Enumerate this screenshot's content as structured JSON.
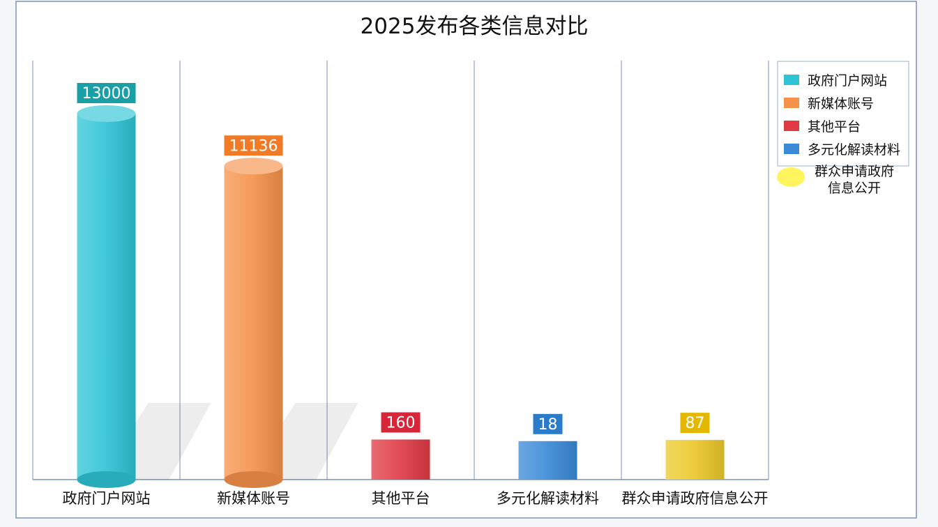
{
  "chart_data": {
    "type": "bar",
    "title": "2025发布各类信息对比",
    "categories": [
      "政府门户网站",
      "新媒体账号",
      "其他平台",
      "多元化解读材料",
      "群众申请政府信息公开"
    ],
    "values": [
      13000,
      11136,
      160,
      18,
      87
    ],
    "value_labels": [
      "13000",
      "11136",
      "160",
      "18",
      "87"
    ],
    "colors": [
      "#2ec4d6",
      "#f5924a",
      "#e03a44",
      "#3a8ad8",
      "#ecc92a"
    ],
    "label_bg_colors": [
      "#1a9fa6",
      "#f07a26",
      "#d7263a",
      "#2a7bc8",
      "#e4b800"
    ],
    "legend": {
      "position": "right",
      "entries": [
        "政府门户网站",
        "新媒体账号",
        "其他平台",
        "多元化解读材料",
        "群众申请政府信息公开"
      ],
      "last_entry_lines": [
        "群众申请政府",
        "信息公开"
      ]
    },
    "grid": true,
    "xlabel": "",
    "ylabel": ""
  }
}
